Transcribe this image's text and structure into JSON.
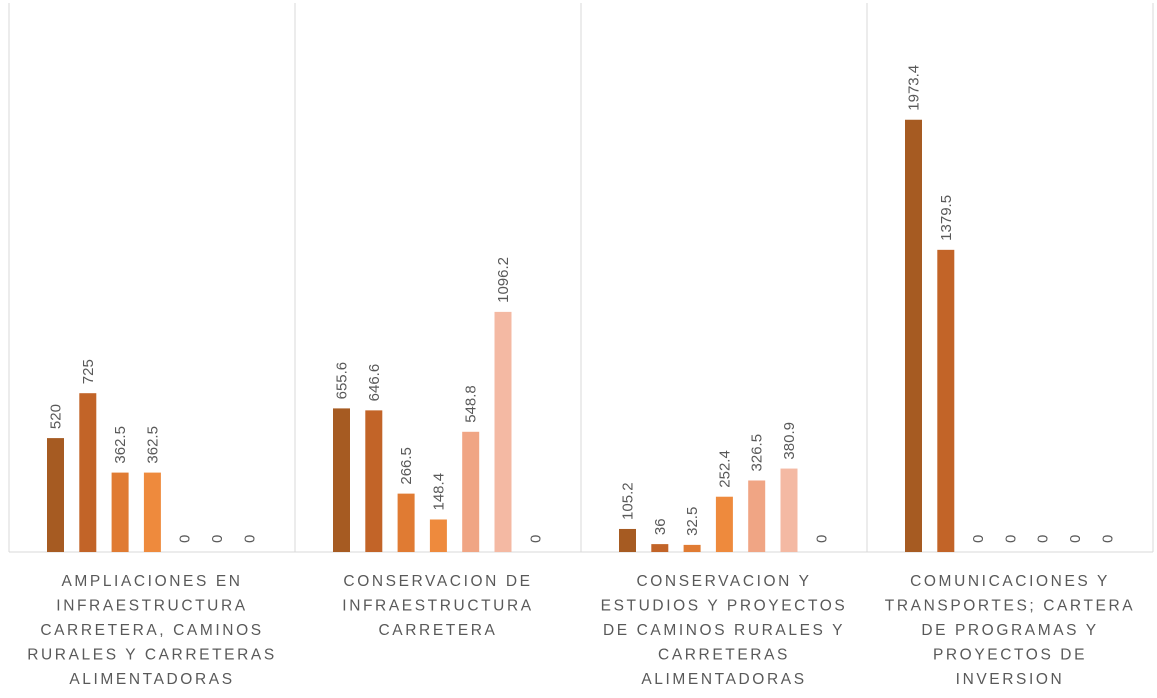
{
  "chart_data": {
    "type": "bar",
    "title": "",
    "xlabel": "",
    "ylabel": "",
    "ylim": [
      0,
      2200
    ],
    "grid": false,
    "legend": "none",
    "series_colors": [
      "#A65B22",
      "#C26428",
      "#E07B33",
      "#EE8A3D",
      "#F0A584",
      "#F4B9A3",
      "#F7CDBE"
    ],
    "categories": [
      {
        "label_lines": [
          "AMPLIACIONES EN",
          "INFRAESTRUCTURA",
          "CARRETERA, CAMINOS",
          "RURALES Y CARRETERAS",
          "ALIMENTADORAS"
        ],
        "values": [
          520,
          725,
          362.5,
          362.5,
          0,
          0,
          0
        ],
        "value_labels": [
          "520",
          "725",
          "362.5",
          "362.5",
          "0",
          "0",
          "0"
        ]
      },
      {
        "label_lines": [
          "CONSERVACION DE",
          "INFRAESTRUCTURA",
          "CARRETERA"
        ],
        "values": [
          655.6,
          646.6,
          266.5,
          148.4,
          548.8,
          1096.2,
          0
        ],
        "value_labels": [
          "655.6",
          "646.6",
          "266.5",
          "148.4",
          "548.8",
          "1096.2",
          "0"
        ]
      },
      {
        "label_lines": [
          "CONSERVACION Y",
          "ESTUDIOS Y PROYECTOS",
          "DE CAMINOS RURALES Y",
          "CARRETERAS",
          "ALIMENTADORAS"
        ],
        "values": [
          105.2,
          36,
          32.5,
          252.4,
          326.5,
          380.9,
          0
        ],
        "value_labels": [
          "105.2",
          "36",
          "32.5",
          "252.4",
          "326.5",
          "380.9",
          "0"
        ]
      },
      {
        "label_lines": [
          "COMUNICACIONES Y",
          "TRANSPORTES; CARTERA",
          "DE PROGRAMAS Y",
          "PROYECTOS DE",
          "INVERSION"
        ],
        "values": [
          1973.4,
          1379.5,
          0,
          0,
          0,
          0,
          0
        ],
        "value_labels": [
          "1973.4",
          "1379.5",
          "0",
          "0",
          "0",
          "0",
          "0"
        ]
      }
    ]
  }
}
